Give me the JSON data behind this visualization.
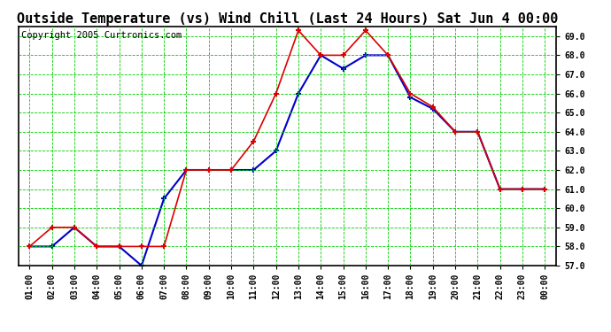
{
  "title": "Outside Temperature (vs) Wind Chill (Last 24 Hours) Sat Jun 4 00:00",
  "copyright": "Copyright 2005 Curtronics.com",
  "hours": [
    "01:00",
    "02:00",
    "03:00",
    "04:00",
    "05:00",
    "06:00",
    "07:00",
    "08:00",
    "09:00",
    "10:00",
    "11:00",
    "12:00",
    "13:00",
    "14:00",
    "15:00",
    "16:00",
    "17:00",
    "18:00",
    "19:00",
    "20:00",
    "21:00",
    "22:00",
    "23:00",
    "00:00"
  ],
  "outside_temp": [
    58.0,
    59.0,
    59.0,
    58.0,
    58.0,
    58.0,
    58.0,
    62.0,
    62.0,
    62.0,
    63.5,
    66.0,
    69.3,
    68.0,
    68.0,
    69.3,
    68.0,
    66.0,
    65.3,
    64.0,
    64.0,
    61.0,
    61.0,
    61.0
  ],
  "wind_chill": [
    58.0,
    58.0,
    59.0,
    58.0,
    58.0,
    57.0,
    60.5,
    62.0,
    62.0,
    62.0,
    62.0,
    63.0,
    66.0,
    68.0,
    67.3,
    68.0,
    68.0,
    65.8,
    65.2,
    64.0,
    64.0,
    61.0,
    61.0,
    61.0
  ],
  "ylim_min": 57.0,
  "ylim_max": 69.5,
  "yticks": [
    57.0,
    58.0,
    59.0,
    60.0,
    61.0,
    62.0,
    63.0,
    64.0,
    65.0,
    66.0,
    67.0,
    68.0,
    69.0
  ],
  "temp_color": "#dd0000",
  "windchill_color": "#0000cc",
  "bg_color": "#ffffff",
  "grid_color": "#00cc00",
  "title_fontsize": 11,
  "copyright_fontsize": 7.5
}
